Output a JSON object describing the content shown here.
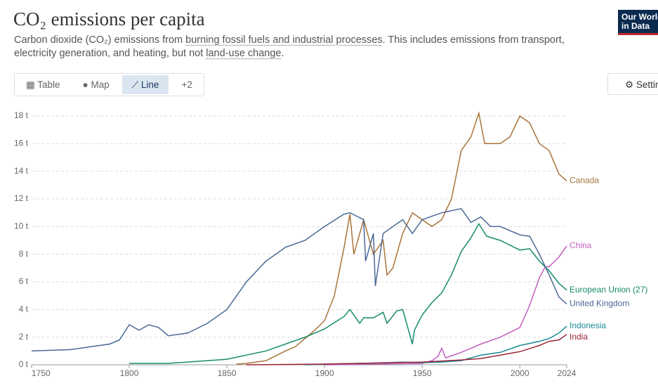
{
  "header": {
    "title": "CO₂ emissions per capita",
    "subtitle": [
      "Carbon dioxide (CO₂) emissions from ",
      "burning fossil fuels and industrial processes",
      ". This includes emissions from transport, electricity generation, and heating, but not ",
      "land-use change",
      "."
    ],
    "logo": [
      "Our World",
      "in Data"
    ]
  },
  "tabs": [
    "Table",
    "Map",
    "Line",
    "+2"
  ],
  "settings": "Settings",
  "chart_data": {
    "type": "line",
    "xlim": [
      1750,
      2024
    ],
    "xticks": [
      1750,
      1800,
      1850,
      1900,
      1950,
      2000,
      2024
    ],
    "ylim": [
      0,
      18
    ],
    "yticks": [
      {
        "value": 0,
        "label": "0 t"
      },
      {
        "value": 2,
        "label": "2 t"
      },
      {
        "value": 4,
        "label": "4 t"
      },
      {
        "value": 6,
        "label": "6 t"
      },
      {
        "value": 8,
        "label": "8 t"
      },
      {
        "value": 10,
        "label": "10 t"
      },
      {
        "value": 12,
        "label": "12 t"
      },
      {
        "value": 14,
        "label": "14 t"
      },
      {
        "value": 16,
        "label": "16 t"
      },
      {
        "value": 18,
        "label": "18 t"
      }
    ],
    "grid": true,
    "series": [
      {
        "name": "Canada",
        "color": "#a8743a",
        "x": [
          1855,
          1860,
          1870,
          1880,
          1885,
          1890,
          1895,
          1900,
          1905,
          1910,
          1913,
          1915,
          1920,
          1925,
          1930,
          1932,
          1935,
          1940,
          1945,
          1950,
          1955,
          1960,
          1965,
          1970,
          1975,
          1979,
          1982,
          1985,
          1990,
          1995,
          2000,
          2005,
          2010,
          2015,
          2020,
          2024
        ],
        "values": [
          0.05,
          0.1,
          0.3,
          1.0,
          1.3,
          1.9,
          2.5,
          3.2,
          5.0,
          8.5,
          10.9,
          8.0,
          10.5,
          8.0,
          9.0,
          6.5,
          7.0,
          9.5,
          11.0,
          10.5,
          10.0,
          10.5,
          12.0,
          15.5,
          16.5,
          18.2,
          16.0,
          16.0,
          16.0,
          16.5,
          18.0,
          17.5,
          16.0,
          15.5,
          13.8,
          13.3
        ]
      },
      {
        "name": "China",
        "color": "#c15fc0",
        "x": [
          1900,
          1950,
          1955,
          1958,
          1960,
          1962,
          1970,
          1975,
          1980,
          1990,
          2000,
          2005,
          2010,
          2013,
          2015,
          2020,
          2024
        ],
        "values": [
          0.0,
          0.1,
          0.3,
          0.6,
          1.2,
          0.5,
          0.9,
          1.2,
          1.5,
          2.0,
          2.7,
          4.3,
          6.3,
          7.1,
          7.1,
          7.8,
          8.6
        ]
      },
      {
        "name": "European Union (27)",
        "color": "#168a6c",
        "x": [
          1800,
          1820,
          1850,
          1860,
          1870,
          1880,
          1890,
          1900,
          1910,
          1913,
          1918,
          1920,
          1925,
          1930,
          1932,
          1937,
          1940,
          1945,
          1946,
          1950,
          1955,
          1960,
          1965,
          1970,
          1975,
          1979,
          1983,
          1990,
          2000,
          2005,
          2010,
          2015,
          2020,
          2024
        ],
        "values": [
          0.1,
          0.1,
          0.4,
          0.7,
          1.0,
          1.5,
          2.0,
          2.6,
          3.5,
          4.0,
          3.0,
          3.4,
          3.4,
          3.8,
          3.0,
          3.9,
          4.0,
          1.5,
          2.5,
          3.6,
          4.5,
          5.2,
          6.5,
          8.2,
          9.2,
          10.2,
          9.3,
          9.0,
          8.3,
          8.4,
          7.5,
          6.8,
          5.9,
          5.4
        ]
      },
      {
        "name": "United Kingdom",
        "color": "#4a6a96",
        "x": [
          1750,
          1770,
          1780,
          1790,
          1795,
          1800,
          1805,
          1810,
          1815,
          1820,
          1830,
          1840,
          1850,
          1855,
          1860,
          1870,
          1875,
          1880,
          1890,
          1900,
          1910,
          1913,
          1920,
          1921,
          1925,
          1926,
          1930,
          1940,
          1945,
          1950,
          1960,
          1970,
          1975,
          1980,
          1985,
          1990,
          2000,
          2005,
          2010,
          2015,
          2020,
          2024
        ],
        "values": [
          1.0,
          1.1,
          1.3,
          1.5,
          1.8,
          2.9,
          2.5,
          2.9,
          2.7,
          2.1,
          2.3,
          3.0,
          4.0,
          5.0,
          6.0,
          7.5,
          8.0,
          8.5,
          9.0,
          10.0,
          10.9,
          11.0,
          10.5,
          7.5,
          9.5,
          5.7,
          9.5,
          10.5,
          9.5,
          10.5,
          11.0,
          11.3,
          10.3,
          10.7,
          10.0,
          10.0,
          9.4,
          9.3,
          8.0,
          6.5,
          4.9,
          4.4
        ]
      },
      {
        "name": "Indonesia",
        "color": "#1a8893",
        "x": [
          1890,
          1900,
          1920,
          1940,
          1950,
          1960,
          1970,
          1980,
          1990,
          2000,
          2010,
          2015,
          2020,
          2024
        ],
        "values": [
          0.0,
          0.05,
          0.1,
          0.2,
          0.15,
          0.2,
          0.3,
          0.7,
          0.9,
          1.4,
          1.7,
          1.9,
          2.3,
          2.8
        ]
      },
      {
        "name": "India",
        "color": "#9b2538",
        "x": [
          1860,
          1900,
          1950,
          1970,
          1980,
          1990,
          2000,
          2010,
          2015,
          2020,
          2024
        ],
        "values": [
          0.0,
          0.05,
          0.2,
          0.35,
          0.45,
          0.7,
          0.95,
          1.4,
          1.7,
          1.8,
          2.2
        ]
      }
    ]
  }
}
